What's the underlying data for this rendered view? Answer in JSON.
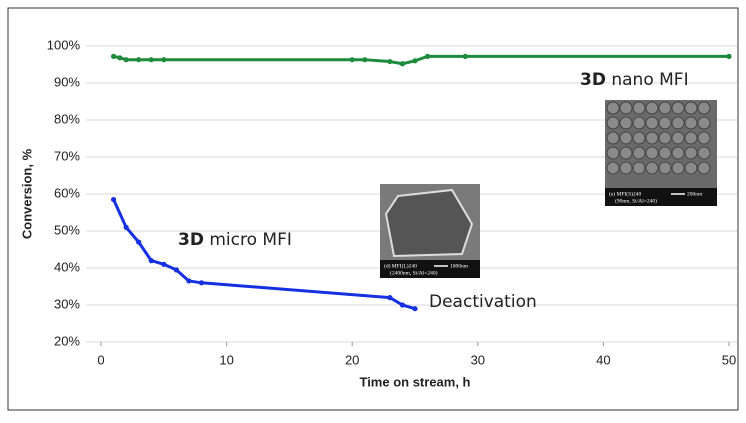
{
  "chart_data": {
    "type": "line",
    "xlabel": "Time on stream, h",
    "ylabel": "Conversion, %",
    "xlim": [
      0,
      50
    ],
    "xticks": [
      0,
      10,
      20,
      30,
      40,
      50
    ],
    "ylim": [
      20,
      100
    ],
    "yticks": [
      {
        "value": 20,
        "label": "20%"
      },
      {
        "value": 30,
        "label": "30%"
      },
      {
        "value": 40,
        "label": "40%"
      },
      {
        "value": 50,
        "label": "50%"
      },
      {
        "value": 60,
        "label": "60%"
      },
      {
        "value": 70,
        "label": "70%"
      },
      {
        "value": 80,
        "label": "80%"
      },
      {
        "value": 90,
        "label": "90%"
      },
      {
        "value": 100,
        "label": "100%"
      }
    ],
    "grid": true,
    "series": [
      {
        "color": "#1e8a3c",
        "x": [
          1,
          1.5,
          2,
          3,
          4,
          5,
          20,
          21,
          23,
          24,
          25,
          26,
          29,
          50
        ],
        "values": [
          97.2,
          96.8,
          96.3,
          96.3,
          96.3,
          96.3,
          96.3,
          96.3,
          95.8,
          95.2,
          96,
          97.2,
          97.2,
          97.2
        ]
      },
      {
        "color": "#1430e0",
        "x": [
          1,
          2,
          3,
          4,
          5,
          6,
          7,
          8,
          23,
          24,
          25
        ],
        "values": [
          58.5,
          51,
          47,
          42,
          41,
          39.5,
          36.5,
          36,
          32,
          30,
          29
        ]
      }
    ],
    "annotations": [
      {
        "bold": "3D",
        "text": "nano MFI"
      },
      {
        "bold": "3D",
        "text": "micro MFI"
      },
      {
        "text": "Deactivation"
      }
    ],
    "images": [
      {
        "caption": "(d) MFI(L)240",
        "scale": "1000nm",
        "detail": "(2400nm, Si/Al=240)"
      },
      {
        "caption": "(e) MFI(S)240",
        "scale": "200nm",
        "detail": "(90nm, Si/Al=240)"
      }
    ]
  }
}
